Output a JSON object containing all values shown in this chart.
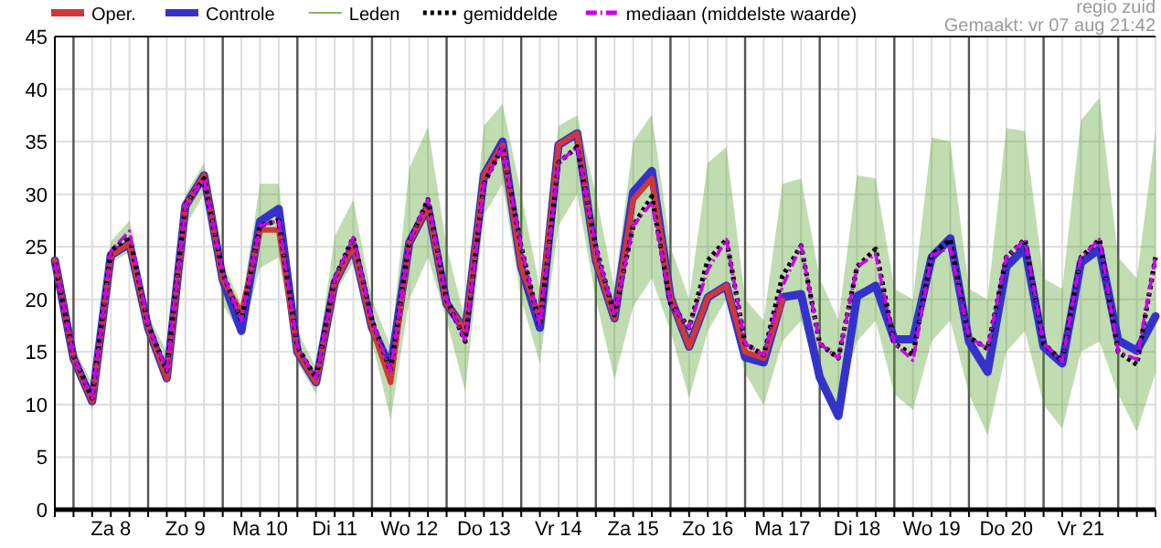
{
  "chart_data": {
    "type": "line",
    "annotations": [
      "regio zuid",
      "Gemaakt: vr 07 aug 21:42"
    ],
    "categories": [
      null,
      null,
      null,
      "Za 8",
      null,
      null,
      null,
      "Zo 9",
      null,
      null,
      null,
      "Ma 10",
      null,
      null,
      null,
      "Di 11",
      null,
      null,
      null,
      "Wo 12",
      null,
      null,
      null,
      "Do 13",
      null,
      null,
      null,
      "Vr 14",
      null,
      null,
      null,
      "Za 15",
      null,
      null,
      null,
      "Zo 16",
      null,
      null,
      null,
      "Ma 17",
      null,
      null,
      null,
      "Di 18",
      null,
      null,
      null,
      "Wo 19",
      null,
      null,
      null,
      "Do 20",
      null,
      null,
      null,
      "Vr 21",
      null,
      null,
      null,
      null
    ],
    "ylim": [
      0,
      45
    ],
    "yticks": [
      0,
      5,
      10,
      15,
      20,
      25,
      30,
      35,
      40,
      45
    ],
    "grid": true,
    "legend": "top",
    "marker": "none",
    "series": [
      {
        "name": "Oper.",
        "color": "#d03838",
        "line_style": "solid",
        "values": [
          23.7,
          14.4,
          10.3,
          24.2,
          25.3,
          17.3,
          12.5,
          28.9,
          31.8,
          21.9,
          18.7,
          26.6,
          26.6,
          15,
          12.1,
          21.6,
          25.1,
          17.3,
          12.1,
          25.4,
          28.8,
          19.6,
          17,
          31.8,
          34.7,
          23.1,
          18.2,
          34.7,
          35.8,
          23.7,
          18.2,
          29.5,
          31.5,
          20.2,
          15.5,
          20.2,
          21.3,
          15,
          14.4,
          19.9,
          null,
          null,
          null,
          null,
          null,
          null,
          null,
          null,
          null,
          null,
          null,
          null,
          null,
          null,
          null,
          null,
          null,
          null,
          null,
          null
        ]
      },
      {
        "name": "Controle",
        "color": "#3333cc",
        "line_style": "solid",
        "values": [
          23.7,
          14.4,
          10.3,
          24.2,
          25.3,
          17.3,
          12.5,
          28.9,
          31.8,
          21.9,
          17,
          27.4,
          28.6,
          15,
          12.1,
          21.6,
          25.1,
          17.3,
          13.5,
          25.4,
          28.8,
          19.6,
          17,
          31.8,
          35,
          23.1,
          17.3,
          34.7,
          35.8,
          23.7,
          18.2,
          30.2,
          32.2,
          20.2,
          15.5,
          20.2,
          21.3,
          14.5,
          14,
          20.2,
          20.5,
          12.6,
          8.9,
          20.3,
          21.3,
          16.2,
          16.2,
          24,
          25.8,
          16,
          13.1,
          23.1,
          24.9,
          15.5,
          13.9,
          23.5,
          24.8,
          16.1,
          15.1,
          18.4
        ]
      },
      {
        "name": "Leden",
        "color": "#4a9a20",
        "line_style": "solid",
        "values": [
          null,
          null,
          null,
          null,
          null,
          null,
          null,
          null,
          null,
          null,
          null,
          null,
          null,
          null,
          null,
          null,
          null,
          null,
          null,
          null,
          null,
          null,
          null,
          null,
          null,
          null,
          null,
          null,
          null,
          null,
          null,
          null,
          null,
          null,
          null,
          null,
          null,
          null,
          null,
          null,
          null,
          null,
          null,
          null,
          null,
          null,
          null,
          null,
          null,
          null,
          null,
          null,
          null,
          null,
          null,
          null,
          null,
          null,
          null,
          null
        ],
        "lower": [
          22,
          13.5,
          9.5,
          23.5,
          24.5,
          16.5,
          12,
          27,
          30,
          19.5,
          16.5,
          23,
          24,
          14,
          11,
          20.5,
          23.5,
          16,
          8.6,
          20,
          24,
          18,
          11.2,
          28,
          31,
          20,
          13.9,
          27,
          30,
          20,
          12.4,
          19.3,
          22,
          17,
          10.6,
          17,
          20,
          13,
          9.9,
          16,
          18,
          12,
          10,
          16,
          18,
          11,
          9.5,
          16,
          18,
          11,
          7.1,
          15,
          17,
          10,
          7.7,
          15,
          16,
          11,
          7.4,
          13
        ],
        "upper": [
          24.5,
          15.5,
          12,
          25.5,
          27.5,
          18.5,
          15,
          30,
          33,
          23.5,
          19.5,
          31,
          31,
          17,
          13.5,
          26,
          29.5,
          20,
          15.5,
          32.5,
          36.4,
          25,
          18,
          36.5,
          38.6,
          30,
          21,
          36.5,
          37.5,
          30,
          21,
          35,
          37.6,
          25,
          20,
          33,
          34.5,
          20,
          18,
          31,
          31.5,
          22,
          18,
          31.8,
          31.5,
          21,
          20,
          35.4,
          35,
          21,
          20,
          36.3,
          36,
          22,
          21,
          37,
          39.2,
          24,
          22,
          36
        ]
      },
      {
        "name": "gemiddelde",
        "color": "#000000",
        "line_style": "dotted",
        "values": [
          23.5,
          14.6,
          10.6,
          24.6,
          26,
          17.6,
          13.2,
          29,
          31.5,
          22.5,
          18,
          27,
          27.5,
          15.5,
          12.5,
          22,
          25.9,
          18,
          13.2,
          25.5,
          29.5,
          20,
          16,
          31,
          34.5,
          25,
          17.5,
          33,
          34.5,
          25,
          18.5,
          27,
          29.8,
          19.6,
          17.3,
          23.7,
          25.7,
          15.8,
          14.7,
          22.2,
          25.1,
          15.8,
          14.4,
          23.1,
          24.8,
          15.8,
          14.7,
          24.2,
          25.7,
          16.4,
          15.3,
          24,
          25.7,
          15.8,
          14.1,
          24,
          25.7,
          15,
          13.8,
          24
        ]
      },
      {
        "name": "mediaan (middelste waarde)",
        "color": "#cc00ee",
        "line_style": "dashed",
        "values": [
          23.5,
          14.6,
          10.6,
          24.6,
          26.5,
          17.6,
          13.2,
          29,
          31.5,
          22.5,
          18,
          27,
          27.5,
          15.5,
          12.5,
          22,
          25.9,
          18,
          13.2,
          25.5,
          29.5,
          20,
          16,
          31,
          34.5,
          25,
          17.5,
          33,
          34.5,
          25,
          18.5,
          27,
          29.2,
          19.6,
          17.3,
          22.8,
          25.7,
          15.8,
          14.7,
          21.2,
          25.1,
          15.8,
          14.4,
          23.1,
          24.3,
          15.8,
          14.2,
          24.2,
          24.9,
          16.4,
          15.3,
          24,
          25.7,
          15.8,
          14.1,
          24,
          25.7,
          15,
          14.3,
          24
        ]
      }
    ]
  }
}
